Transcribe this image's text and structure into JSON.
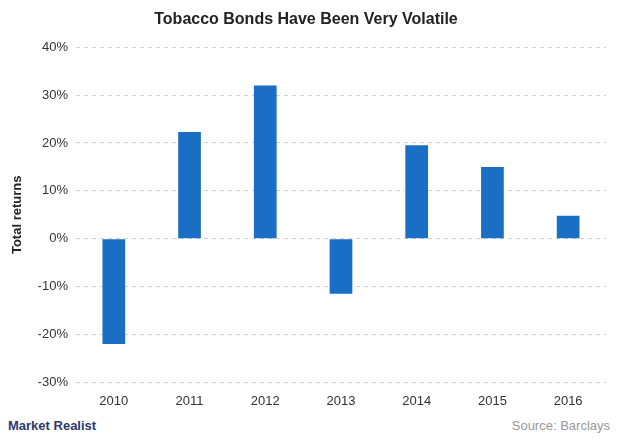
{
  "chart_data": {
    "type": "bar",
    "title": "Tobacco Bonds Have Been Very Volatile",
    "y_label": "Total returns",
    "categories": [
      "2010",
      "2011",
      "2012",
      "2013",
      "2014",
      "2015",
      "2016"
    ],
    "values": [
      -22,
      22.3,
      32,
      -11.5,
      19.5,
      15,
      4.8
    ],
    "color": "#1a6fc4",
    "ylim": [
      -30,
      40
    ],
    "yticks": [
      {
        "value": -30,
        "label": "-30%"
      },
      {
        "value": -20,
        "label": "-20%"
      },
      {
        "value": -10,
        "label": "-10%"
      },
      {
        "value": 0,
        "label": "0%"
      },
      {
        "value": 10,
        "label": "10%"
      },
      {
        "value": 20,
        "label": "20%"
      },
      {
        "value": 30,
        "label": "30%"
      },
      {
        "value": 40,
        "label": "40%"
      }
    ],
    "grid": true,
    "source": "Source: Barclays",
    "logo": "Market Realist"
  }
}
